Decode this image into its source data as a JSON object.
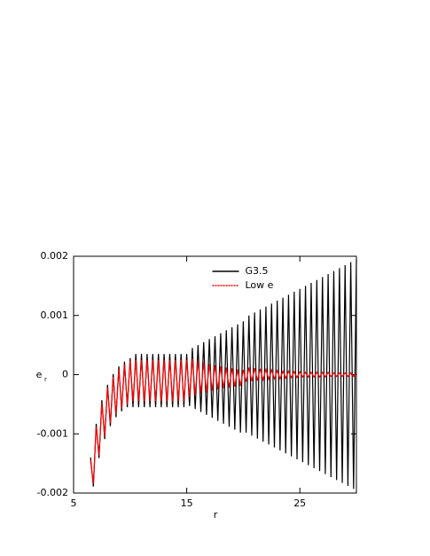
{
  "chart_data": {
    "type": "line",
    "xlabel": "r",
    "ylabel": "e",
    "ylabel_sub": "r",
    "xlim": [
      5,
      30
    ],
    "ylim": [
      -0.002,
      0.002
    ],
    "xticks": [
      5,
      15,
      25
    ],
    "yticks": [
      -0.002,
      -0.001,
      0,
      0.001,
      0.002
    ],
    "legend": "top",
    "x": [
      6.5,
      6.75,
      7,
      7.25,
      7.5,
      7.75,
      8,
      8.25,
      8.5,
      8.75,
      9,
      9.25,
      9.5,
      9.75,
      10,
      10.25,
      10.5,
      10.75,
      11,
      11.25,
      11.5,
      11.75,
      12,
      12.25,
      12.5,
      12.75,
      13,
      13.25,
      13.5,
      13.75,
      14,
      14.25,
      14.5,
      14.75,
      15,
      15.25,
      15.5,
      15.75,
      16,
      16.25,
      16.5,
      16.75,
      17,
      17.25,
      17.5,
      17.75,
      18,
      18.25,
      18.5,
      18.75,
      19,
      19.25,
      19.5,
      19.75,
      20,
      20.25,
      20.5,
      20.75,
      21,
      21.25,
      21.5,
      21.75,
      22,
      22.25,
      22.5,
      22.75,
      23,
      23.25,
      23.5,
      23.75,
      24,
      24.25,
      24.5,
      24.75,
      25,
      25.25,
      25.5,
      25.75,
      26,
      26.25,
      26.5,
      26.75,
      27,
      27.25,
      27.5,
      27.75,
      28,
      28.25,
      28.5,
      28.75,
      29,
      29.25,
      29.5,
      29.75,
      30
    ],
    "series": [
      {
        "name": "G3.5",
        "color": "#000000",
        "values": [
          -0.0014,
          -0.00189,
          -0.00083,
          -0.00141,
          -0.00043,
          -0.00109,
          -0.00017,
          -0.00087,
          1e-05,
          -0.00072,
          0.00014,
          -0.00062,
          0.00022,
          -0.00055,
          0.00028,
          -0.00055,
          0.00035,
          -0.00055,
          0.00035,
          -0.00055,
          0.00035,
          -0.00055,
          0.00035,
          -0.00055,
          0.00035,
          -0.00055,
          0.00035,
          -0.00055,
          0.00035,
          -0.00055,
          0.00035,
          -0.00055,
          0.00035,
          -0.00055,
          0.00035,
          -0.00053,
          0.00045,
          -0.00058,
          0.0005,
          -0.00063,
          0.00055,
          -0.00068,
          0.0006,
          -0.00073,
          0.00065,
          -0.00078,
          0.0007,
          -0.00083,
          0.00075,
          -0.00088,
          0.0008,
          -0.00093,
          0.00085,
          -0.00098,
          0.0009,
          -0.00098,
          0.001,
          -0.00103,
          0.00105,
          -0.00108,
          0.0011,
          -0.00113,
          0.00115,
          -0.00118,
          0.0012,
          -0.00123,
          0.00125,
          -0.00128,
          0.0013,
          -0.00133,
          0.00135,
          -0.00138,
          0.0014,
          -0.00143,
          0.00145,
          -0.00148,
          0.0015,
          -0.00153,
          0.00155,
          -0.00158,
          0.0016,
          -0.00163,
          0.00165,
          -0.00168,
          0.0017,
          -0.00173,
          0.00175,
          -0.00178,
          0.0018,
          -0.00183,
          0.00185,
          -0.00188,
          0.0019,
          -0.00193,
          0.00195
        ]
      },
      {
        "name": "Low e",
        "color": "#ff0000",
        "values": [
          -0.00145,
          -0.00184,
          -0.00088,
          -0.00136,
          -0.00048,
          -0.00104,
          -0.00022,
          -0.00082,
          -4e-05,
          -0.00067,
          9e-05,
          -0.00057,
          0.00017,
          -0.0005,
          0.00023,
          -0.00045,
          0.00025,
          -0.00045,
          0.00025,
          -0.00045,
          0.00025,
          -0.00045,
          0.00025,
          -0.00045,
          0.00025,
          -0.00045,
          0.00025,
          -0.00045,
          0.00025,
          -0.00045,
          0.00025,
          -0.00045,
          0.00025,
          -0.00045,
          0.00025,
          -0.00038,
          0.00027,
          -0.00035,
          0.00024,
          -0.00032,
          0.00021,
          -0.0003,
          0.00018,
          -0.00027,
          0.00016,
          -0.00025,
          0.00014,
          -0.00023,
          0.00012,
          -0.00022,
          0.00011,
          -0.0002,
          9e-05,
          -0.00019,
          8e-05,
          -0.00012,
          0.00012,
          -0.00011,
          0.00011,
          -0.0001,
          0.0001,
          -9e-05,
          9e-05,
          -8e-05,
          8e-05,
          -7e-05,
          7e-05,
          -7e-05,
          6e-05,
          -6e-05,
          6e-05,
          -5e-05,
          5e-05,
          -5e-05,
          5e-05,
          -4e-05,
          4e-05,
          -4e-05,
          4e-05,
          -4e-05,
          4e-05,
          -4e-05,
          4e-05,
          -4e-05,
          4e-05,
          -3e-05,
          3e-05,
          -3e-05,
          3e-05,
          -3e-05,
          3e-05,
          -3e-05,
          3e-05,
          -3e-05,
          3e-05
        ]
      }
    ]
  }
}
